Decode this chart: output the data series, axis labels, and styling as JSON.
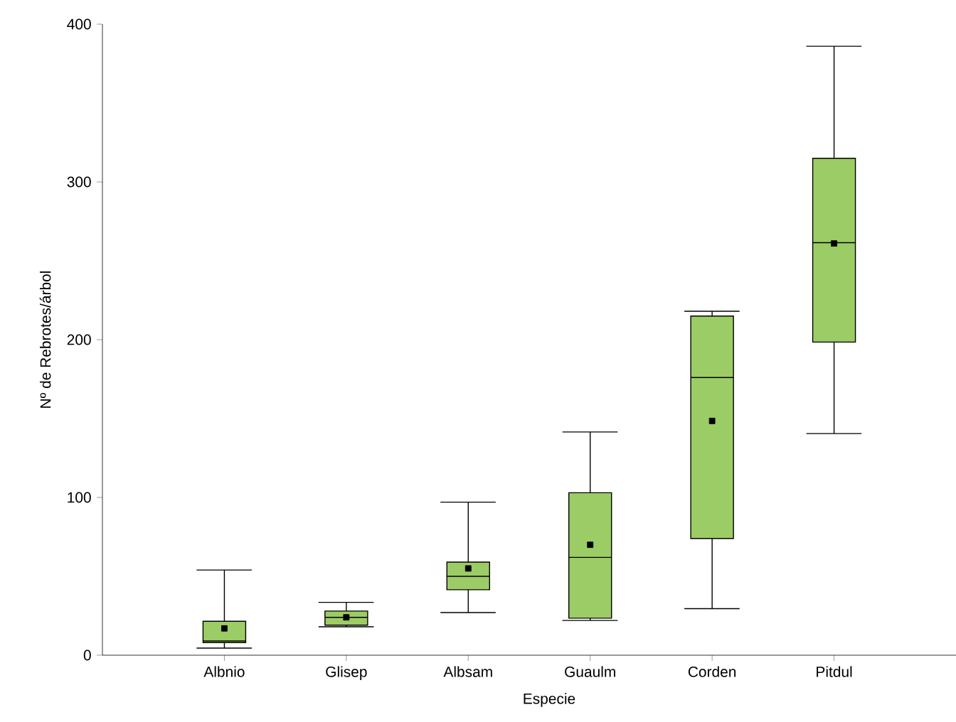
{
  "chart_data": {
    "type": "box",
    "xlabel": "Especie",
    "ylabel": "Nº de Rebrotes/árbol",
    "categories": [
      "Albnio",
      "Glisep",
      "Albsam",
      "Guaulm",
      "Corden",
      "Pitdul"
    ],
    "color": "#9ccc65",
    "boxes": [
      {
        "low": 4.5,
        "q1": 8,
        "median": 9,
        "q3": 21.5,
        "high": 54,
        "mean": 17
      },
      {
        "low": 18,
        "q1": 19,
        "median": 24,
        "q3": 28,
        "high": 33.5,
        "mean": 24
      },
      {
        "low": 27,
        "q1": 41.5,
        "median": 50,
        "q3": 59,
        "high": 97,
        "mean": 55
      },
      {
        "low": 22,
        "q1": 23.5,
        "median": 62,
        "q3": 103,
        "high": 141.5,
        "mean": 70
      },
      {
        "low": 29.5,
        "q1": 74,
        "median": 176,
        "q3": 215,
        "high": 218,
        "mean": 148.5
      },
      {
        "low": 140.5,
        "q1": 198.5,
        "median": 261.5,
        "q3": 315,
        "high": 386,
        "mean": 261
      }
    ],
    "ylim": [
      0,
      400
    ],
    "yticks": [
      0,
      100,
      200,
      300,
      400
    ],
    "grid": false
  }
}
